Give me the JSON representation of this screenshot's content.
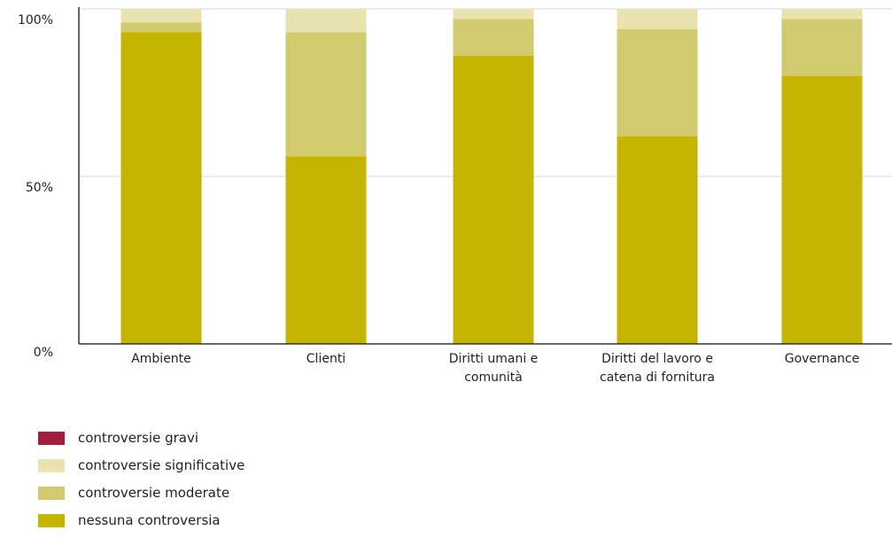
{
  "chart_data": {
    "type": "bar",
    "stacked": true,
    "percent": true,
    "categories": [
      [
        "Ambiente"
      ],
      [
        "Clienti"
      ],
      [
        "Diritti umani e",
        "comunità"
      ],
      [
        "Diritti del lavoro e",
        "catena di fornitura"
      ],
      [
        "Governance"
      ]
    ],
    "series": [
      {
        "name": "nessuna controversia",
        "color": "#c5b400",
        "values": [
          93,
          56,
          86,
          62,
          80
        ]
      },
      {
        "name": "controversie moderate",
        "color": "#d2ca6e",
        "values": [
          3,
          37,
          11,
          32,
          17
        ]
      },
      {
        "name": "controversie significative",
        "color": "#e8e3b0",
        "values": [
          4,
          7,
          3,
          6,
          3
        ]
      },
      {
        "name": "controversie gravi",
        "color": "#a51d3e",
        "values": [
          0,
          0,
          0,
          0,
          0
        ]
      }
    ],
    "y_ticks": [
      "0%",
      "50%",
      "100%"
    ],
    "ylim": [
      0,
      100
    ],
    "grid": true,
    "legend_position": "bottom-left",
    "title": "",
    "xlabel": "",
    "ylabel": ""
  },
  "legend": [
    {
      "label": "controversie gravi",
      "color": "#a51d3e"
    },
    {
      "label": "controversie significative",
      "color": "#e8e3b0"
    },
    {
      "label": "controversie moderate",
      "color": "#d2ca6e"
    },
    {
      "label": "nessuna controversia",
      "color": "#c5b400"
    }
  ]
}
